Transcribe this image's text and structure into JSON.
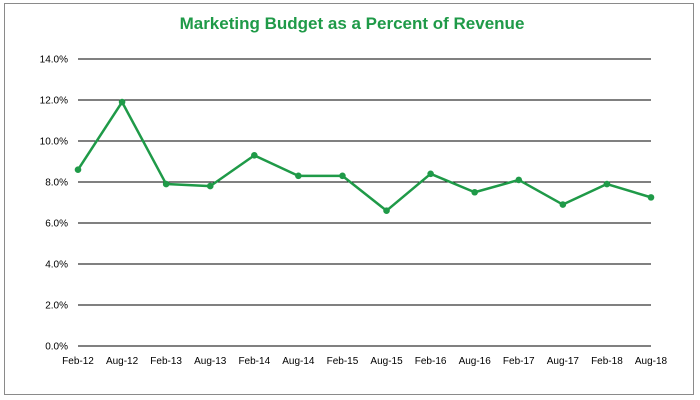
{
  "chart_data": {
    "type": "line",
    "title": "Marketing Budget as a Percent of Revenue",
    "xlabel": "",
    "ylabel": "",
    "categories": [
      "Feb-12",
      "Aug-12",
      "Feb-13",
      "Aug-13",
      "Feb-14",
      "Aug-14",
      "Feb-15",
      "Aug-15",
      "Feb-16",
      "Aug-16",
      "Feb-17",
      "Aug-17",
      "Feb-18",
      "Aug-18"
    ],
    "series": [
      {
        "values": [
          8.6,
          11.9,
          7.9,
          7.8,
          9.3,
          8.3,
          8.3,
          6.6,
          8.4,
          7.5,
          8.1,
          6.9,
          7.9,
          7.25
        ]
      }
    ],
    "ylim": [
      0,
      14
    ],
    "yticks": [
      "0.0%",
      "2.0%",
      "4.0%",
      "6.0%",
      "8.0%",
      "10.0%",
      "12.0%",
      "14.0%"
    ],
    "grid": true,
    "legend": "none",
    "colors": {
      "line": "#1f9a48",
      "title": "#1f9a48",
      "grid": "#000000"
    }
  }
}
